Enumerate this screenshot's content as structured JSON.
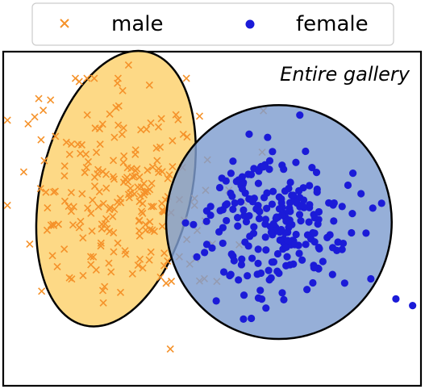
{
  "chart_data": {
    "type": "scatter",
    "title": "Entire gallery",
    "xlabel": "",
    "ylabel": "",
    "grid": false,
    "legend_position": "top",
    "colors": {
      "male": "#f5922a",
      "female": "#1b1bd8",
      "male_ellipse_fill": "#fdd16b",
      "female_ellipse_fill": "#7f9ed0",
      "frame": "#000000"
    },
    "series": [
      {
        "name": "male",
        "marker": "x",
        "cluster": {
          "cx": 0.28,
          "cy": 0.42,
          "sx": 0.11,
          "sy": 0.16,
          "n": 230,
          "seed": 7
        },
        "outliers": [
          [
            0.01,
            0.46
          ],
          [
            0.3,
            0.04
          ],
          [
            0.35,
            0.1
          ],
          [
            0.4,
            0.89
          ]
        ]
      },
      {
        "name": "female",
        "marker": "circle",
        "cluster": {
          "cx": 0.66,
          "cy": 0.51,
          "sx": 0.09,
          "sy": 0.11,
          "n": 230,
          "seed": 19
        },
        "outliers": [
          [
            0.94,
            0.74
          ],
          [
            0.98,
            0.76
          ],
          [
            0.88,
            0.68
          ],
          [
            0.71,
            0.19
          ]
        ]
      }
    ],
    "ellipses": [
      {
        "series": "male",
        "cx": 0.27,
        "cy": 0.41,
        "rx": 0.18,
        "ry": 0.42,
        "angle_deg": 13
      },
      {
        "series": "female",
        "cx": 0.66,
        "cy": 0.51,
        "rx": 0.27,
        "ry": 0.35,
        "angle_deg": 0
      }
    ],
    "xlim": [
      0,
      1
    ],
    "ylim": [
      0,
      1
    ]
  }
}
